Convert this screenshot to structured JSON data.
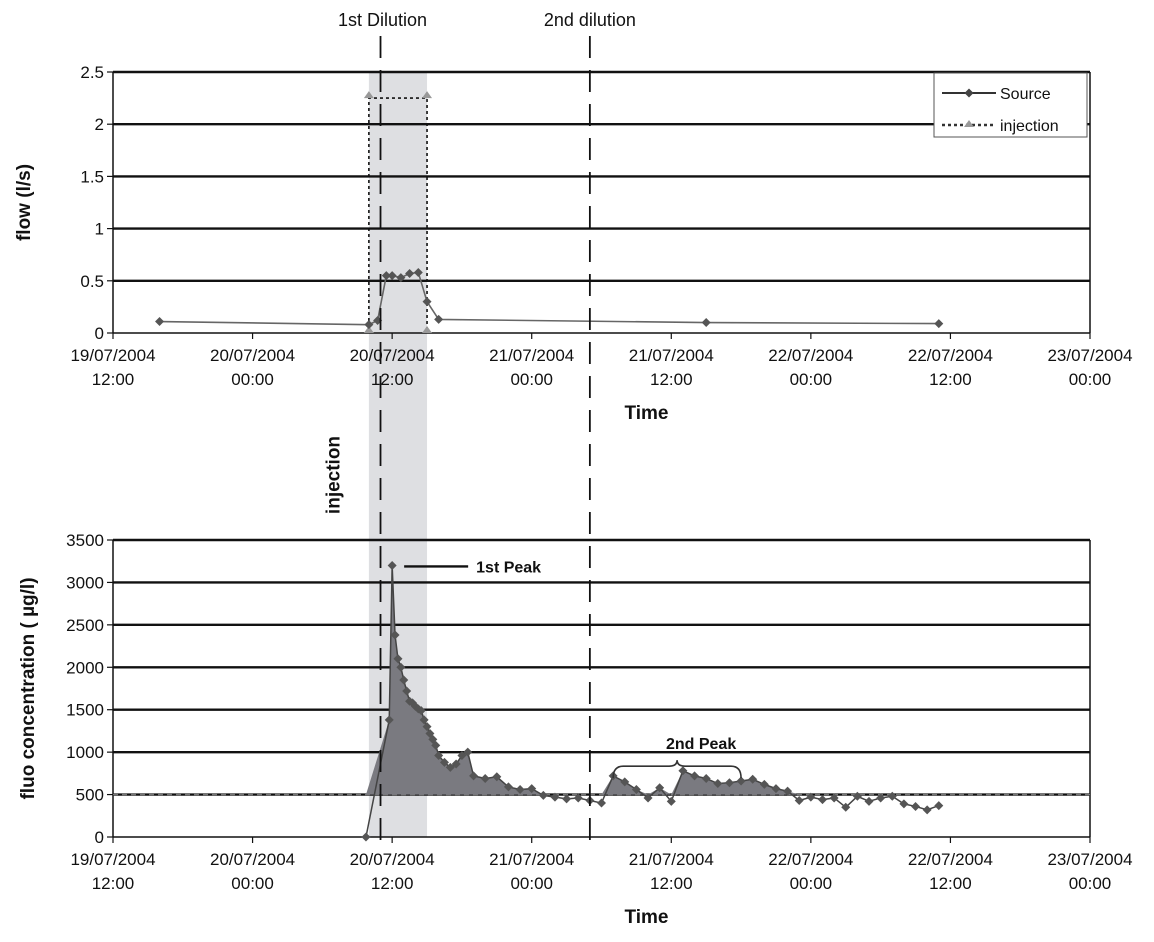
{
  "chart_data": [
    {
      "type": "line",
      "xlabel": "Time",
      "ylabel": "flow (l/s)",
      "ylim": [
        0,
        2.5
      ],
      "yticks": [
        "0",
        "0.5",
        "1",
        "1.5",
        "2",
        "2.5"
      ],
      "xlim": [
        "19/07/2004 12:00",
        "23/07/2004 00:00"
      ],
      "xticks": [
        [
          "19/07/2004",
          "12:00"
        ],
        [
          "20/07/2004",
          "00:00"
        ],
        [
          "20/07/2004",
          "12:00"
        ],
        [
          "21/07/2004",
          "00:00"
        ],
        [
          "21/07/2004",
          "12:00"
        ],
        [
          "22/07/2004",
          "00:00"
        ],
        [
          "22/07/2004",
          "12:00"
        ],
        [
          "23/07/2004",
          "00:00"
        ]
      ],
      "grid": true,
      "legend": "top-right",
      "series": [
        {
          "name": "Source",
          "style": "solid-diamond",
          "x": [
            "19/07/2004 16:00",
            "20/07/2004 10:00",
            "20/07/2004 10:45",
            "20/07/2004 11:30",
            "20/07/2004 12:00",
            "20/07/2004 12:45",
            "20/07/2004 13:30",
            "20/07/2004 14:15",
            "20/07/2004 15:00",
            "20/07/2004 16:00",
            "21/07/2004 15:00",
            "22/07/2004 11:00"
          ],
          "values": [
            0.11,
            0.08,
            0.12,
            0.55,
            0.55,
            0.53,
            0.57,
            0.58,
            0.3,
            0.13,
            0.1,
            0.09
          ]
        },
        {
          "name": "injection",
          "style": "dotted",
          "x": [
            "20/07/2004 10:00",
            "20/07/2004 10:00",
            "20/07/2004 15:00",
            "20/07/2004 15:00"
          ],
          "values": [
            0,
            2.25,
            2.25,
            0
          ]
        }
      ],
      "annotations": {
        "first_dilution": "1st Dilution",
        "second_dilution": "2nd dilution"
      }
    },
    {
      "type": "area",
      "xlabel": "Time",
      "ylabel": "fluo concentration ( µg/l)",
      "ylim": [
        0,
        3500
      ],
      "yticks": [
        "0",
        "500",
        "1000",
        "1500",
        "2000",
        "2500",
        "3000",
        "3500"
      ],
      "xlim": [
        "19/07/2004 12:00",
        "23/07/2004 00:00"
      ],
      "xticks": [
        [
          "19/07/2004",
          "12:00"
        ],
        [
          "20/07/2004",
          "00:00"
        ],
        [
          "20/07/2004",
          "12:00"
        ],
        [
          "21/07/2004",
          "00:00"
        ],
        [
          "21/07/2004",
          "12:00"
        ],
        [
          "22/07/2004",
          "00:00"
        ],
        [
          "22/07/2004",
          "12:00"
        ],
        [
          "23/07/2004",
          "00:00"
        ]
      ],
      "grid": true,
      "baseline": 500,
      "series": [
        {
          "style": "solid-diamond",
          "x": [
            "20/07/2004 09:45",
            "20/07/2004 11:45",
            "20/07/2004 12:00",
            "20/07/2004 12:15",
            "20/07/2004 12:30",
            "20/07/2004 12:45",
            "20/07/2004 13:00",
            "20/07/2004 13:15",
            "20/07/2004 13:30",
            "20/07/2004 13:45",
            "20/07/2004 14:00",
            "20/07/2004 14:15",
            "20/07/2004 14:30",
            "20/07/2004 14:45",
            "20/07/2004 15:00",
            "20/07/2004 15:15",
            "20/07/2004 15:30",
            "20/07/2004 15:45",
            "20/07/2004 16:00",
            "20/07/2004 16:30",
            "20/07/2004 17:00",
            "20/07/2004 17:30",
            "20/07/2004 18:00",
            "20/07/2004 18:30",
            "20/07/2004 19:00",
            "20/07/2004 20:00",
            "20/07/2004 21:00",
            "20/07/2004 22:00",
            "20/07/2004 23:00",
            "21/07/2004 00:00",
            "21/07/2004 01:00",
            "21/07/2004 02:00",
            "21/07/2004 03:00",
            "21/07/2004 04:00",
            "21/07/2004 05:00",
            "21/07/2004 06:00",
            "21/07/2004 07:00",
            "21/07/2004 08:00",
            "21/07/2004 09:00",
            "21/07/2004 10:00",
            "21/07/2004 11:00",
            "21/07/2004 12:00",
            "21/07/2004 13:00",
            "21/07/2004 14:00",
            "21/07/2004 15:00",
            "21/07/2004 16:00",
            "21/07/2004 17:00",
            "21/07/2004 18:00",
            "21/07/2004 19:00",
            "21/07/2004 20:00",
            "21/07/2004 21:00",
            "21/07/2004 22:00",
            "21/07/2004 23:00",
            "22/07/2004 00:00",
            "22/07/2004 01:00",
            "22/07/2004 02:00",
            "22/07/2004 03:00",
            "22/07/2004 04:00",
            "22/07/2004 05:00",
            "22/07/2004 06:00",
            "22/07/2004 07:00",
            "22/07/2004 08:00",
            "22/07/2004 09:00",
            "22/07/2004 10:00",
            "22/07/2004 11:00"
          ],
          "values": [
            0,
            1380,
            3200,
            2380,
            2100,
            2000,
            1850,
            1720,
            1600,
            1580,
            1540,
            1510,
            1490,
            1380,
            1300,
            1220,
            1150,
            1080,
            960,
            880,
            820,
            860,
            960,
            1000,
            720,
            690,
            710,
            590,
            560,
            570,
            490,
            470,
            450,
            460,
            430,
            400,
            720,
            650,
            560,
            460,
            580,
            420,
            780,
            720,
            690,
            630,
            640,
            660,
            680,
            620,
            570,
            540,
            430,
            470,
            440,
            460,
            350,
            480,
            420,
            460,
            480,
            390,
            360,
            320,
            370
          ]
        }
      ],
      "annotations": {
        "first_peak": "1st Peak",
        "second_peak": "2nd Peak",
        "injection": "injection"
      }
    }
  ]
}
